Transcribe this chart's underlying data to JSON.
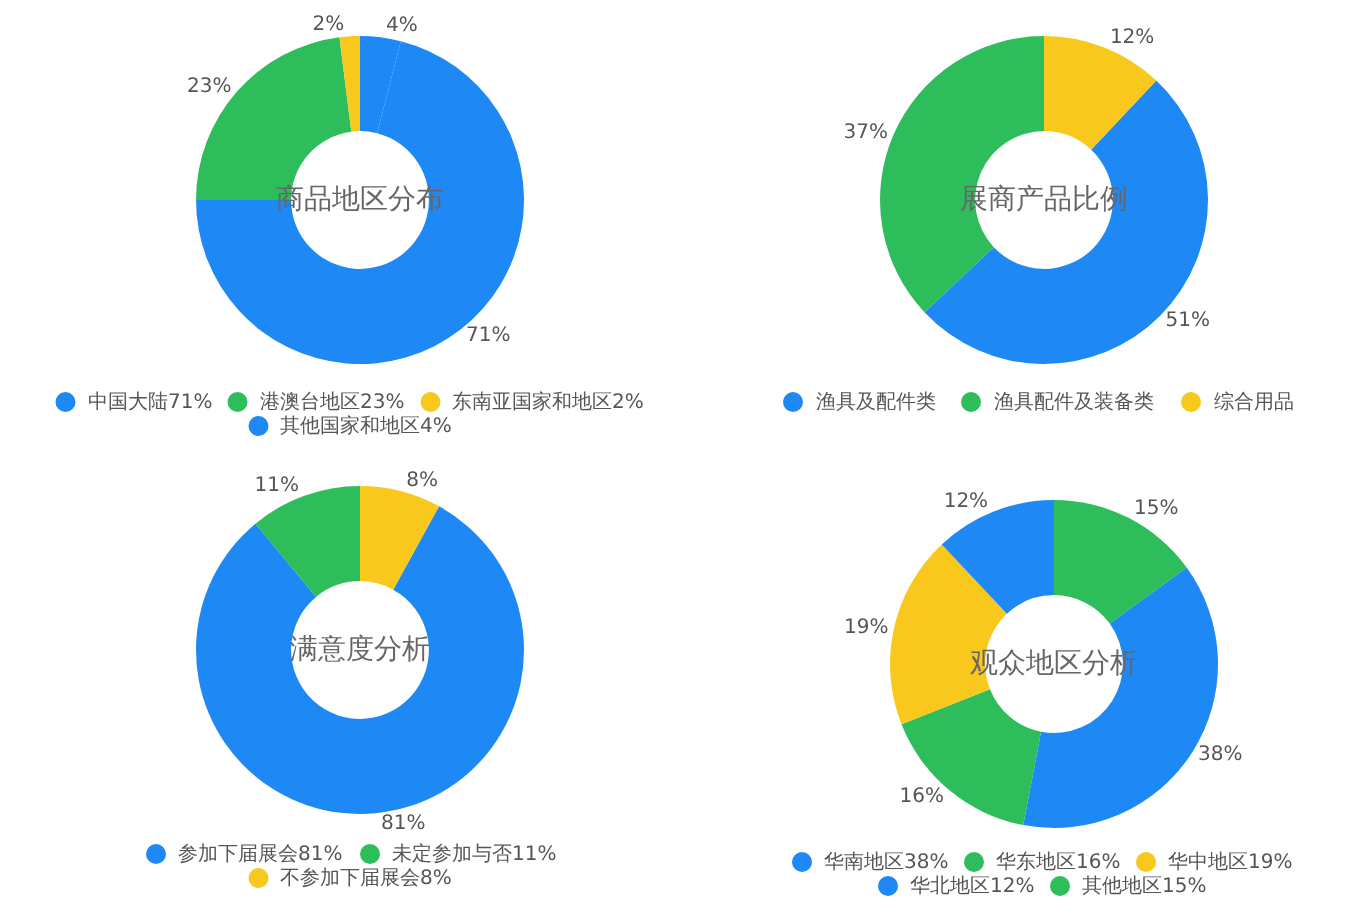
{
  "chart_data": [
    {
      "type": "donut",
      "title": "商品地区分布",
      "categories": [
        "中国大陆71%",
        "港澳台地区23%",
        "东南亚国家和地区2%",
        "其他国家和地区4%"
      ],
      "values": [
        71,
        23,
        2,
        4
      ],
      "value_labels": [
        "71%",
        "23%",
        "2%",
        "4%"
      ],
      "colors": [
        "#1e88f5",
        "#2dbd5a",
        "#f8c81c",
        "#1e88f5"
      ],
      "legend": "bottom"
    },
    {
      "type": "donut",
      "title": "展商产品比例",
      "categories": [
        "渔具及配件类",
        "渔具配件及装备类",
        "综合用品"
      ],
      "values": [
        51,
        37,
        12
      ],
      "value_labels": [
        "51%",
        "37%",
        "12%"
      ],
      "colors": [
        "#1e88f5",
        "#2dbd5a",
        "#f8c81c"
      ],
      "legend": "bottom"
    },
    {
      "type": "donut",
      "title": "满意度分析",
      "categories": [
        "参加下届展会81%",
        "未定参加与否11%",
        "不参加下届展会8%"
      ],
      "values": [
        81,
        11,
        8
      ],
      "value_labels": [
        "81%",
        "11%",
        "8%"
      ],
      "colors": [
        "#1e88f5",
        "#2dbd5a",
        "#f8c81c"
      ],
      "legend": "bottom"
    },
    {
      "type": "donut",
      "title": "观众地区分析",
      "categories": [
        "华南地区38%",
        "华东地区16%",
        "华中地区19%",
        "华北地区12%",
        "其他地区15%"
      ],
      "values": [
        38,
        16,
        19,
        12,
        15
      ],
      "value_labels": [
        "38%",
        "16%",
        "19%",
        "12%",
        "15%"
      ],
      "colors": [
        "#1e88f5",
        "#2dbd5a",
        "#f8c81c",
        "#1e88f5",
        "#2dbd5a"
      ],
      "legend": "bottom"
    }
  ]
}
